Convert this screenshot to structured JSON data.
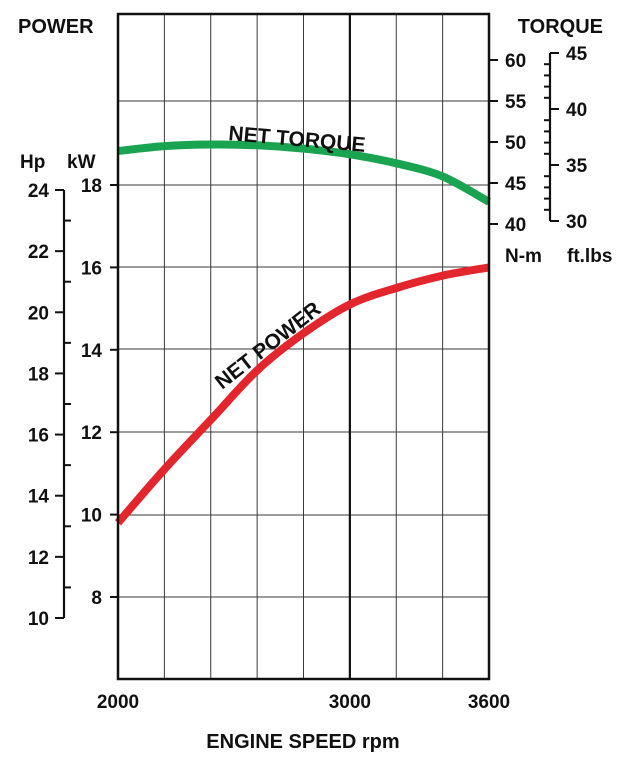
{
  "chart_data": {
    "type": "line",
    "title": "",
    "left_axis_title": "POWER",
    "right_axis_title": "TORQUE",
    "xlabel": "ENGINE SPEED rpm",
    "x_ticks": [
      2000,
      3000,
      3600
    ],
    "xlim": [
      2000,
      3600
    ],
    "grid": true,
    "axes": {
      "kw": {
        "unit": "kW",
        "range": [
          4,
          20
        ],
        "ticks": [
          8,
          10,
          12,
          14,
          16,
          18
        ]
      },
      "hp": {
        "unit": "Hp",
        "ticks": [
          10,
          12,
          14,
          16,
          18,
          20,
          22,
          24
        ]
      },
      "nm": {
        "unit": "N-m",
        "ticks": [
          40,
          45,
          50,
          55,
          60
        ]
      },
      "ftlbs": {
        "unit": "ft.lbs",
        "ticks": [
          30,
          35,
          40,
          45
        ]
      }
    },
    "series": [
      {
        "name": "NET TORQUE",
        "axis": "nm",
        "color": "#1aa452",
        "x": [
          2000,
          2200,
          2400,
          2600,
          2800,
          3000,
          3200,
          3400,
          3600
        ],
        "y": [
          48.9,
          49.5,
          49.7,
          49.6,
          49.2,
          48.5,
          47.4,
          45.8,
          42.7
        ]
      },
      {
        "name": "NET POWER",
        "axis": "kw",
        "color": "#e3262e",
        "x": [
          2000,
          2200,
          2400,
          2600,
          2800,
          3000,
          3200,
          3400,
          3600
        ],
        "y": [
          9.8,
          11.1,
          12.3,
          13.5,
          14.4,
          15.1,
          15.5,
          15.8,
          16.0
        ]
      }
    ]
  }
}
